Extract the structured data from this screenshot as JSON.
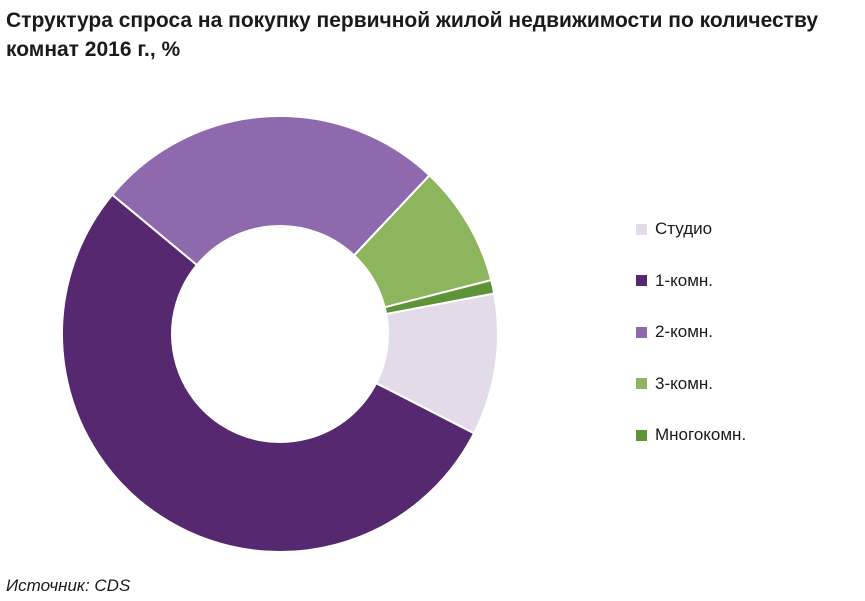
{
  "chart_data": {
    "type": "pie",
    "donut": true,
    "title": "Структура спроса на покупку первичной жилой недвижимости по количеству комнат 2016 г., %",
    "categories": [
      "Студио",
      "1-комн.",
      "2-комн.",
      "3-комн.",
      "Многокомн."
    ],
    "values": [
      10.5,
      53.5,
      26,
      9,
      1
    ],
    "colors": [
      "#e3dce8",
      "#55286f",
      "#8f69ae",
      "#8db55e",
      "#5e9438"
    ],
    "legend_position": "right"
  },
  "source": "Источник: CDS"
}
